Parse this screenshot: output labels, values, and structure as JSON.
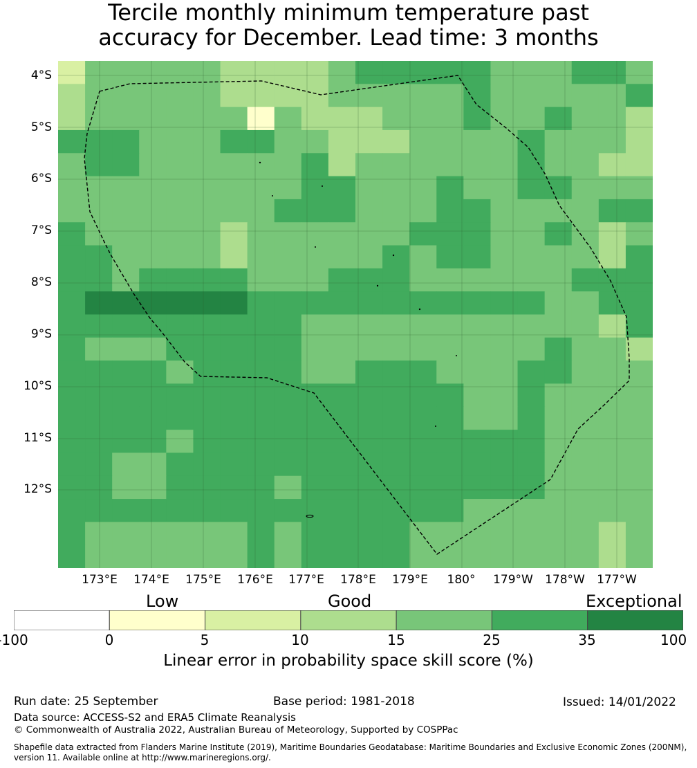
{
  "title": {
    "line1": "Tercile monthly minimum temperature past",
    "line2": "accuracy for December. Lead time: 3 months"
  },
  "map": {
    "lat_labels": [
      "4°S",
      "5°S",
      "6°S",
      "7°S",
      "8°S",
      "9°S",
      "10°S",
      "11°S",
      "12°S"
    ],
    "lon_labels": [
      "173°E",
      "174°E",
      "175°E",
      "176°E",
      "177°E",
      "178°E",
      "179°E",
      "180°",
      "179°W",
      "178°W",
      "177°W"
    ],
    "palette": {
      "0": "#ffffff",
      "1": "#ffffcc",
      "2": "#d9f0a3",
      "3": "#addd8e",
      "4": "#78c679",
      "5": "#41ab5d",
      "6": "#238443"
    },
    "grid_rows": [
      "2444443333455555444554",
      "3444443333444445444445",
      "3444444143334445445443",
      "5554445544333444454443",
      "4554444445344444454433",
      "4444444445544454455444",
      "4444444455544455444455",
      "5444443444444555445434",
      "5544443444445455444435",
      "5545555444555444444555",
      "5666666555555555554455",
      "5555555554444444444435",
      "5444555554444444445443",
      "5555455554455544455444",
      "5555555555555554454444",
      "5555555555555554454444",
      "5555455555555555554444",
      "5544555555555555554444",
      "5544555545555555554444",
      "5555555555555554444444",
      "5444444545555444444434",
      "5444444545555444444434"
    ]
  },
  "colorbar": {
    "categories": [
      "Low",
      "Good",
      "Exceptional"
    ],
    "ticks": [
      "-100",
      "0",
      "5",
      "10",
      "15",
      "25",
      "35",
      "100"
    ],
    "colors": [
      "#ffffff",
      "#ffffcc",
      "#d9f0a3",
      "#addd8e",
      "#78c679",
      "#41ab5d",
      "#238443"
    ],
    "label": "Linear error in probability space skill score (%)"
  },
  "footer": {
    "run_date": "Run date: 25 September",
    "base_period": "Base period: 1981-2018",
    "issued": "Issued: 14/01/2022",
    "data_source": "Data source: ACCESS-S2 and ERA5 Climate Reanalysis",
    "copyright": "© Commonwealth of Australia 2022, Australian Bureau of Meteorology, Supported by COSPPac",
    "shapefile_note": "Shapefile data extracted from Flanders Marine Institute (2019), Maritime Boundaries Geodatabase: Maritime Boundaries and Exclusive Economic Zones (200NM), version 11. Available online at http://www.marineregions.org/."
  }
}
